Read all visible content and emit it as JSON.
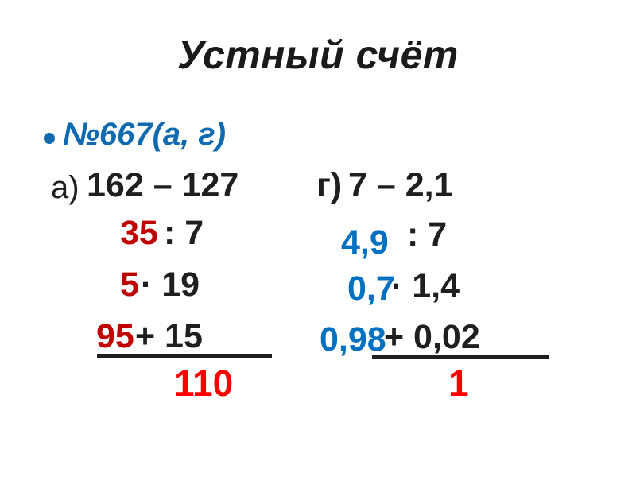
{
  "title": "Устный счёт",
  "exercise": "№667(а, г)",
  "problems": {
    "left": {
      "label": "а)",
      "expression": "162 – 127",
      "steps": [
        {
          "answer": "35",
          "operation": ": 7"
        },
        {
          "answer": "5",
          "operation": "· 19"
        },
        {
          "answer": "95",
          "operation": "+ 15"
        }
      ],
      "result": "110"
    },
    "right": {
      "label": "г)",
      "expression": "7 – 2,1",
      "steps": [
        {
          "answer": "4,9",
          "operation": ": 7"
        },
        {
          "answer": "0,7",
          "operation": "· 1,4"
        },
        {
          "answer": "0,98",
          "operation": "+ 0,02"
        }
      ],
      "result": "1"
    }
  },
  "colors": {
    "background": "#FFFFFF",
    "title_text": "#1A1A1A",
    "body_text": "#1F1F1F",
    "exercise_blue": "#1169B0",
    "answer_blue": "#0070C0",
    "answer_dark_red": "#C00000",
    "result_red": "#FF0000"
  }
}
